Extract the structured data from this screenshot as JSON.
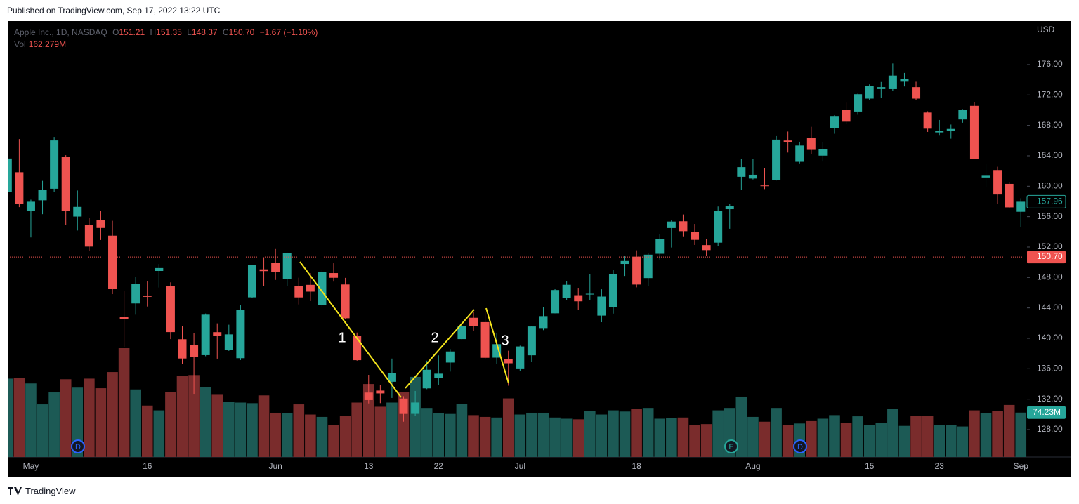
{
  "header": {
    "published": "Published on TradingView.com, Sep 17, 2022 13:22 UTC"
  },
  "footer": {
    "brand": "TradingView"
  },
  "chart_data": {
    "type": "candlestick",
    "legend": {
      "symbol": "Apple Inc., 1D, NASDAQ",
      "o_label": "O",
      "open": 151.21,
      "h_label": "H",
      "high": 151.35,
      "l_label": "L",
      "low": 148.37,
      "c_label": "C",
      "close": {
        "value": 150.7,
        "label": "150.70"
      },
      "change": "−1.67 (−1.10%)",
      "vol_label": "Vol",
      "volume": "162.279M"
    },
    "currency": "USD",
    "up_color": "#26a69a",
    "down_color": "#ef5350",
    "volume_up_color": "#1c5a55",
    "volume_down_color": "#7a2c2c",
    "categories": [
      null,
      null,
      "May",
      null,
      null,
      null,
      null,
      null,
      null,
      null,
      null,
      null,
      "16",
      null,
      null,
      null,
      null,
      null,
      null,
      null,
      null,
      null,
      null,
      "Jun",
      null,
      null,
      null,
      null,
      null,
      null,
      null,
      "13",
      null,
      null,
      null,
      null,
      null,
      "22",
      null,
      null,
      null,
      null,
      null,
      null,
      "Jul",
      null,
      null,
      null,
      null,
      null,
      null,
      null,
      null,
      null,
      "18",
      null,
      null,
      null,
      null,
      null,
      null,
      null,
      null,
      null,
      "Aug",
      null,
      null,
      null,
      null,
      null,
      null,
      null,
      null,
      null,
      "15",
      null,
      null,
      null,
      null,
      null,
      "23",
      null,
      null,
      null,
      null,
      null,
      null,
      "Sep"
    ],
    "open": [
      159.25,
      161.84,
      156.71,
      158.15,
      159.67,
      163.85,
      156.01,
      154.93,
      155.52,
      153.5,
      142.77,
      144.59,
      145.55,
      148.86,
      146.85,
      139.88,
      139.09,
      137.79,
      140.81,
      138.43,
      137.39,
      145.39,
      149.07,
      149.9,
      147.83,
      146.9,
      147.03,
      144.35,
      148.58,
      147.08,
      140.28,
      132.87,
      133.13,
      134.29,
      132.08,
      130.07,
      133.42,
      134.79,
      136.82,
      139.9,
      142.7,
      142.13,
      137.46,
      137.25,
      136.04,
      137.77,
      141.35,
      143.29,
      145.26,
      145.67,
      145.76,
      142.99,
      144.08,
      149.78,
      150.74,
      147.92,
      151.12,
      154.5,
      155.39,
      154.01,
      152.26,
      152.58,
      156.98,
      161.24,
      161.01,
      160.1,
      160.84,
      166.01,
      163.21,
      166.37,
      164.02,
      167.68,
      170.06,
      169.82,
      171.52,
      172.78,
      172.77,
      173.75,
      173.03,
      169.69,
      167.08,
      167.32,
      168.78,
      170.57,
      161.15,
      162.13,
      160.31,
      156.64
    ],
    "high": [
      164.52,
      166.2,
      158.23,
      160.71,
      166.48,
      164.08,
      159.44,
      155.83,
      156.74,
      155.45,
      146.2,
      148.1,
      147.52,
      149.77,
      147.36,
      141.66,
      140.7,
      143.26,
      141.97,
      141.79,
      144.34,
      149.68,
      150.66,
      151.74,
      151.27,
      147.97,
      148.57,
      149,
      149.87,
      147.95,
      140.76,
      135.2,
      133.89,
      137.34,
      132.39,
      133.08,
      137.06,
      137.76,
      138.59,
      141.91,
      143.49,
      143.42,
      140.67,
      138.37,
      139.04,
      141.61,
      144.12,
      146.55,
      147.55,
      146.64,
      148.45,
      146.45,
      148.95,
      150.86,
      151.57,
      151.23,
      153.72,
      155.57,
      156.28,
      155.04,
      153.09,
      157.33,
      157.64,
      163.63,
      163.59,
      162.41,
      166.59,
      167.19,
      165.85,
      167.81,
      165.82,
      169.34,
      170.99,
      172.17,
      173.39,
      173.71,
      176.15,
      174.9,
      173.74,
      169.86,
      168.71,
      168.11,
      170.14,
      171.05,
      162.9,
      162.56,
      160.58,
      158.42
    ],
    "low": [
      158.93,
      157.25,
      153.27,
      156.32,
      159.26,
      154.95,
      154.18,
      151.49,
      152.93,
      145.81,
      138.8,
      143.11,
      144.18,
      146.68,
      139.9,
      136.6,
      132.61,
      137.65,
      137.33,
      138.34,
      137.14,
      145.26,
      146.84,
      147.68,
      146.86,
      144.46,
      144.9,
      144.1,
      147.46,
      142.53,
      137.06,
      131.44,
      131.48,
      132.16,
      129.04,
      129.81,
      133.32,
      133.91,
      135.63,
      139.77,
      140.97,
      137.32,
      136.67,
      133.77,
      135.66,
      136.93,
      141.08,
      143.28,
      145,
      143.78,
      145.05,
      142.12,
      143.25,
      148.2,
      146.7,
      146.91,
      150.37,
      151.94,
      153.41,
      152.28,
      150.8,
      152.16,
      154.41,
      159.5,
      160.89,
      159.63,
      160.75,
      164.43,
      163,
      164.2,
      163.25,
      166.9,
      168.19,
      169.4,
      171.35,
      171.66,
      172.57,
      173.12,
      171.31,
      167.14,
      166.65,
      166.25,
      168.35,
      163.56,
      159.82,
      157.72,
      157.14,
      154.67
    ],
    "close": [
      163.64,
      157.65,
      157.96,
      159.48,
      166.02,
      156.77,
      157.28,
      152.06,
      154.51,
      146.5,
      142.56,
      147.11,
      145.54,
      149.24,
      140.82,
      137.35,
      137.59,
      143.11,
      140.36,
      140.52,
      143.78,
      149.64,
      148.84,
      148.71,
      151.21,
      145.38,
      146.14,
      148.71,
      147.96,
      142.64,
      137.13,
      131.88,
      132.76,
      135.43,
      130.06,
      131.56,
      135.87,
      135.35,
      138.27,
      141.66,
      141.66,
      137.44,
      139.23,
      136.72,
      138.93,
      141.56,
      142.92,
      146.35,
      147.04,
      144.87,
      145.86,
      145.49,
      148.47,
      150.17,
      147.07,
      151,
      153.04,
      155.35,
      154.09,
      152.95,
      151.6,
      156.79,
      157.35,
      162.51,
      161.51,
      160.01,
      166.13,
      165.81,
      165.35,
      164.87,
      164.92,
      169.24,
      168.49,
      172.1,
      173.19,
      173.03,
      174.55,
      174.15,
      171.52,
      167.57,
      167.23,
      167.53,
      170.03,
      163.62,
      161.38,
      158.91,
      157.22,
      157.96
    ],
    "volume": [
      131,
      132,
      123,
      88,
      108,
      130,
      116,
      131,
      115,
      142,
      182,
      113,
      86,
      78,
      109,
      136,
      137,
      117,
      104,
      92,
      91,
      90,
      103,
      74,
      73,
      88,
      71,
      67,
      53,
      69,
      91,
      122,
      84,
      91,
      108,
      134,
      82,
      73,
      72,
      89,
      70,
      67,
      66,
      98,
      71,
      74,
      74,
      66,
      64,
      63,
      77,
      71,
      78,
      76,
      81,
      82,
      64,
      65,
      66,
      54,
      55,
      78,
      82,
      101,
      67,
      59,
      82,
      53,
      56,
      60,
      64,
      70,
      57,
      68,
      54,
      57,
      80,
      52,
      69,
      69,
      54,
      54,
      51,
      78,
      73,
      77,
      87,
      74.23
    ],
    "volume_label": "74.23M",
    "ylim": [
      124.4,
      181.72
    ],
    "yticks": [
      {
        "value": 128,
        "label": "128.00"
      },
      {
        "value": 132,
        "label": "132.00"
      },
      {
        "value": 136,
        "label": "136.00"
      },
      {
        "value": 140,
        "label": "140.00"
      },
      {
        "value": 144,
        "label": "144.00"
      },
      {
        "value": 148,
        "label": "148.00"
      },
      {
        "value": 152,
        "label": "152.00"
      },
      {
        "value": 156,
        "label": "156.00"
      },
      {
        "value": 160,
        "label": "160.00"
      },
      {
        "value": 164,
        "label": "164.00"
      },
      {
        "value": 168,
        "label": "168.00"
      },
      {
        "value": 172,
        "label": "172.00"
      },
      {
        "value": 176,
        "label": "176.00"
      }
    ],
    "grid": false,
    "annotations": [
      "1",
      "2",
      "3"
    ],
    "events": [
      "D",
      "E",
      "D"
    ]
  }
}
